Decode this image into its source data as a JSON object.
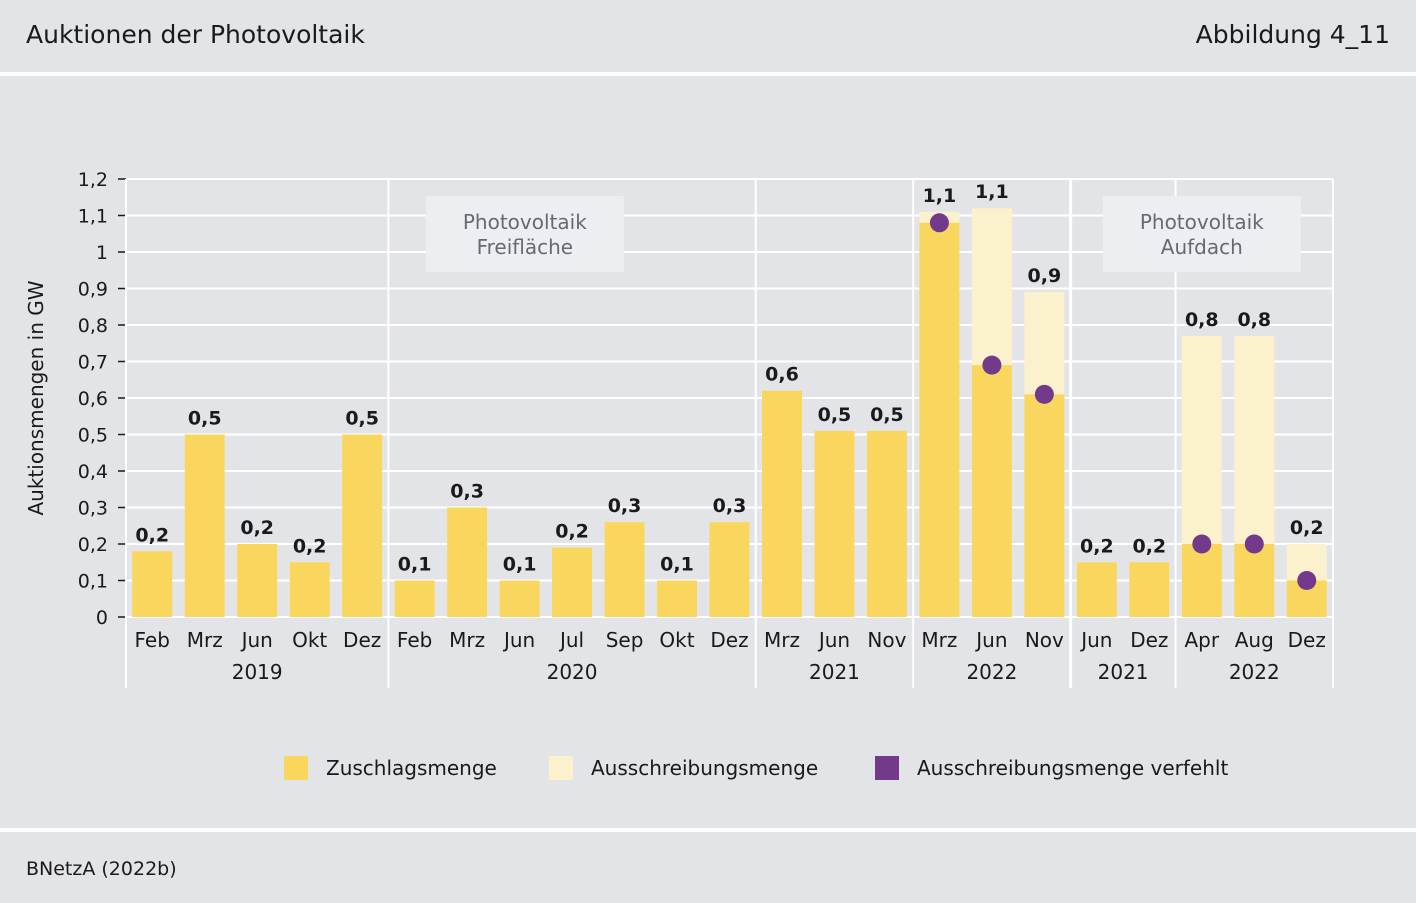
{
  "header": {
    "title": "Auktionen der Photovoltaik",
    "figure": "Abbildung 4_11"
  },
  "source": "BNetzA (2022b)",
  "colors": {
    "zuschlag": "#f9d75e",
    "ausschreibung": "#fbf1cc",
    "verfehlt": "#73398a",
    "grid": "#ffffff",
    "background": "#e3e4e8"
  },
  "legend": {
    "zuschlag": "Zuschlagsmenge",
    "ausschreibung": "Ausschreibungsmenge",
    "verfehlt": "Ausschreibungsmenge verfehlt"
  },
  "chart_data": {
    "type": "bar",
    "title": "Auktionen der Photovoltaik",
    "ylabel": "Auktionsmengen in GW",
    "ylim": [
      0,
      1.2
    ],
    "yticks": [
      "0",
      "0,1",
      "0,2",
      "0,3",
      "0,4",
      "0,5",
      "0,6",
      "0,7",
      "0,8",
      "0,9",
      "1",
      "1,1",
      "1,2"
    ],
    "sections": [
      {
        "name": "Photovoltaik Freifläche",
        "line1": "Photovoltaik",
        "line2": "Freifläche"
      },
      {
        "name": "Photovoltaik Aufdach",
        "line1": "Photovoltaik",
        "line2": "Aufdach"
      }
    ],
    "year_groups": [
      {
        "label": "2019",
        "count": 5
      },
      {
        "label": "2020",
        "count": 7
      },
      {
        "label": "2021",
        "count": 3
      },
      {
        "label": "2022",
        "count": 3
      },
      {
        "label": "2021",
        "count": 2
      },
      {
        "label": "2022",
        "count": 3
      }
    ],
    "categories": [
      "Feb",
      "Mrz",
      "Jun",
      "Okt",
      "Dez",
      "Feb",
      "Mrz",
      "Jun",
      "Jul",
      "Sep",
      "Okt",
      "Dez",
      "Mrz",
      "Jun",
      "Nov",
      "Mrz",
      "Jun",
      "Nov",
      "Jun",
      "Dez",
      "Apr",
      "Aug",
      "Dez"
    ],
    "series": [
      {
        "name": "Zuschlagsmenge",
        "values": [
          0.18,
          0.5,
          0.2,
          0.15,
          0.5,
          0.1,
          0.3,
          0.1,
          0.19,
          0.26,
          0.1,
          0.26,
          0.62,
          0.51,
          0.51,
          1.08,
          0.69,
          0.61,
          0.15,
          0.15,
          0.2,
          0.2,
          0.1
        ]
      },
      {
        "name": "Ausschreibungsmenge",
        "values": [
          0.18,
          0.5,
          0.2,
          0.15,
          0.5,
          0.1,
          0.3,
          0.1,
          0.19,
          0.26,
          0.1,
          0.26,
          0.62,
          0.51,
          0.51,
          1.11,
          1.12,
          0.89,
          0.15,
          0.15,
          0.77,
          0.77,
          0.2
        ]
      },
      {
        "name": "Ausschreibungsmenge verfehlt",
        "values": [
          null,
          null,
          null,
          null,
          null,
          null,
          null,
          null,
          null,
          null,
          null,
          null,
          null,
          null,
          null,
          1.08,
          0.69,
          0.61,
          null,
          null,
          0.2,
          0.2,
          0.1
        ]
      }
    ],
    "data_labels": [
      "0,2",
      "0,5",
      "0,2",
      "0,2",
      "0,5",
      "0,1",
      "0,3",
      "0,1",
      "0,2",
      "0,3",
      "0,1",
      "0,3",
      "0,6",
      "0,5",
      "0,5",
      "1,1",
      "1,1",
      "0,9",
      "0,2",
      "0,2",
      "0,8",
      "0,8",
      "0,2"
    ]
  }
}
